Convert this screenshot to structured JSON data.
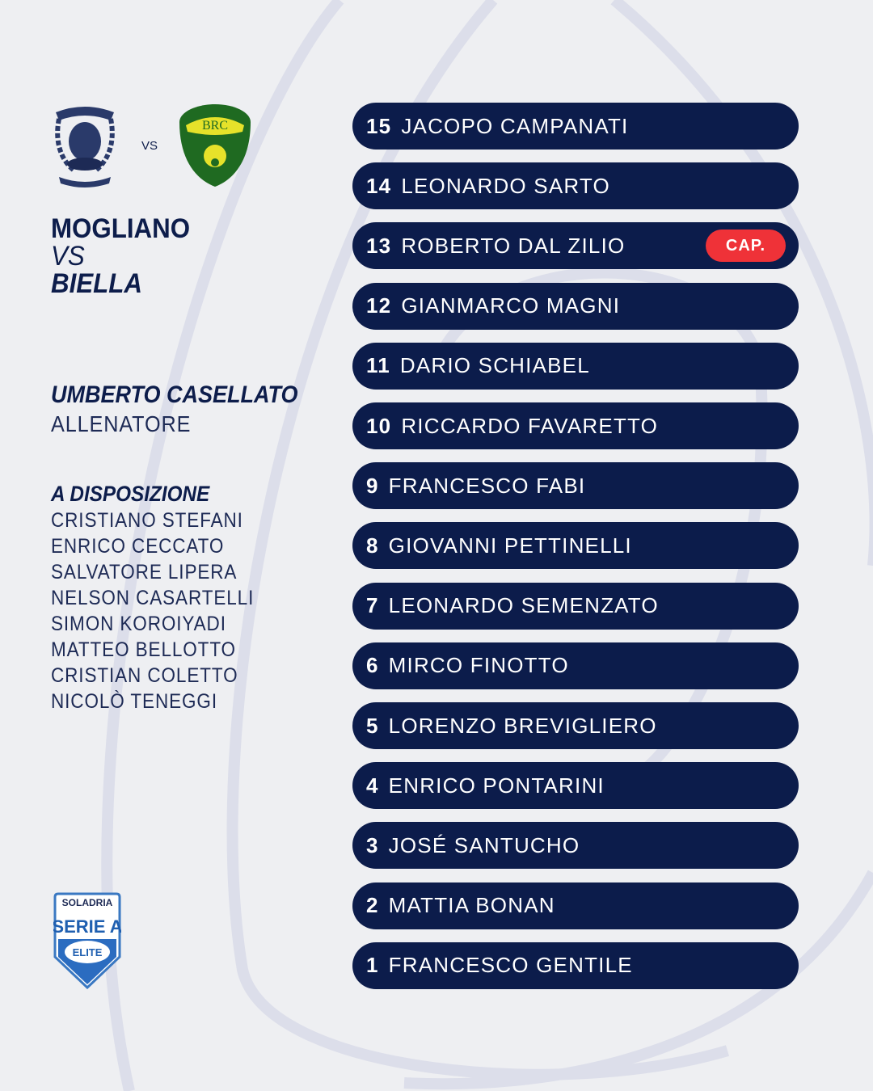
{
  "match": {
    "home": "MOGLIANO",
    "vs": "VS",
    "away": "BIELLA",
    "logo_vs": "VS"
  },
  "logos": {
    "home": "MOGLIANO VENETO RUGBY",
    "away": "Biella Rugby Club BRC",
    "league": "SOLADRIA SERIE A ELITE MASCHILE"
  },
  "coach": {
    "name": "UMBERTO CASELLATO",
    "role": "ALLENATORE"
  },
  "bench": {
    "heading": "A DISPOSIZIONE",
    "players": [
      "CRISTIANO STEFANI",
      "ENRICO CECCATO",
      "SALVATORE LIPERA",
      "NELSON CASARTELLI",
      "SIMON KOROIYADI",
      "MATTEO BELLOTTO",
      "CRISTIAN COLETTO",
      "NICOLÒ TENEGGI"
    ]
  },
  "lineup": [
    {
      "number": "15",
      "name": "JACOPO CAMPANATI"
    },
    {
      "number": "14",
      "name": "LEONARDO SARTO"
    },
    {
      "number": "13",
      "name": "ROBERTO DAL ZILIO",
      "badge": "CAP."
    },
    {
      "number": "12",
      "name": "GIANMARCO MAGNI"
    },
    {
      "number": "11",
      "name": "DARIO SCHIABEL"
    },
    {
      "number": "10",
      "name": "RICCARDO FAVARETTO"
    },
    {
      "number": "9",
      "name": "FRANCESCO FABI"
    },
    {
      "number": "8",
      "name": "GIOVANNI PETTINELLI"
    },
    {
      "number": "7",
      "name": "LEONARDO SEMENZATO"
    },
    {
      "number": "6",
      "name": "MIRCO FINOTTO"
    },
    {
      "number": "5",
      "name": "LORENZO BREVIGLIERO"
    },
    {
      "number": "4",
      "name": "ENRICO PONTARINI"
    },
    {
      "number": "3",
      "name": "JOSÉ SANTUCHO"
    },
    {
      "number": "2",
      "name": "MATTIA BONAN"
    },
    {
      "number": "1",
      "name": "FRANCESCO GENTILE"
    }
  ],
  "colors": {
    "navy": "#0c1c4b",
    "captain": "#ef3238",
    "background": "#eeeff2"
  }
}
